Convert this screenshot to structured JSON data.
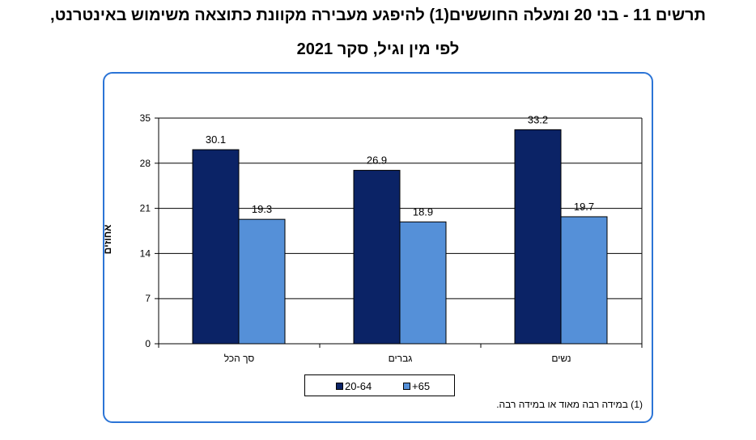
{
  "title_line1": "תרשים 11 - בני 20 ומעלה החוששים(1) להיפגע מעבירה מקוונת כתוצאה משימוש באינטרנט,",
  "title_line2": "לפי מין וגיל, סקר 2021",
  "footnote": "(1) במידה רבה מאוד או במידה רבה.",
  "chart_data": {
    "type": "bar",
    "categories": [
      "סך הכל",
      "גברים",
      "נשים"
    ],
    "series": [
      {
        "name": "20-64",
        "values": [
          30.1,
          26.9,
          33.2
        ],
        "color": "#0b2366"
      },
      {
        "name": "+65",
        "values": [
          19.3,
          18.9,
          19.7
        ],
        "color": "#5590d8"
      }
    ],
    "ylabel": "אחוזים",
    "ylim": [
      0,
      35
    ],
    "yticks": [
      0,
      7,
      14,
      21,
      28,
      35
    ],
    "grid": true,
    "legend_position": "bottom"
  }
}
